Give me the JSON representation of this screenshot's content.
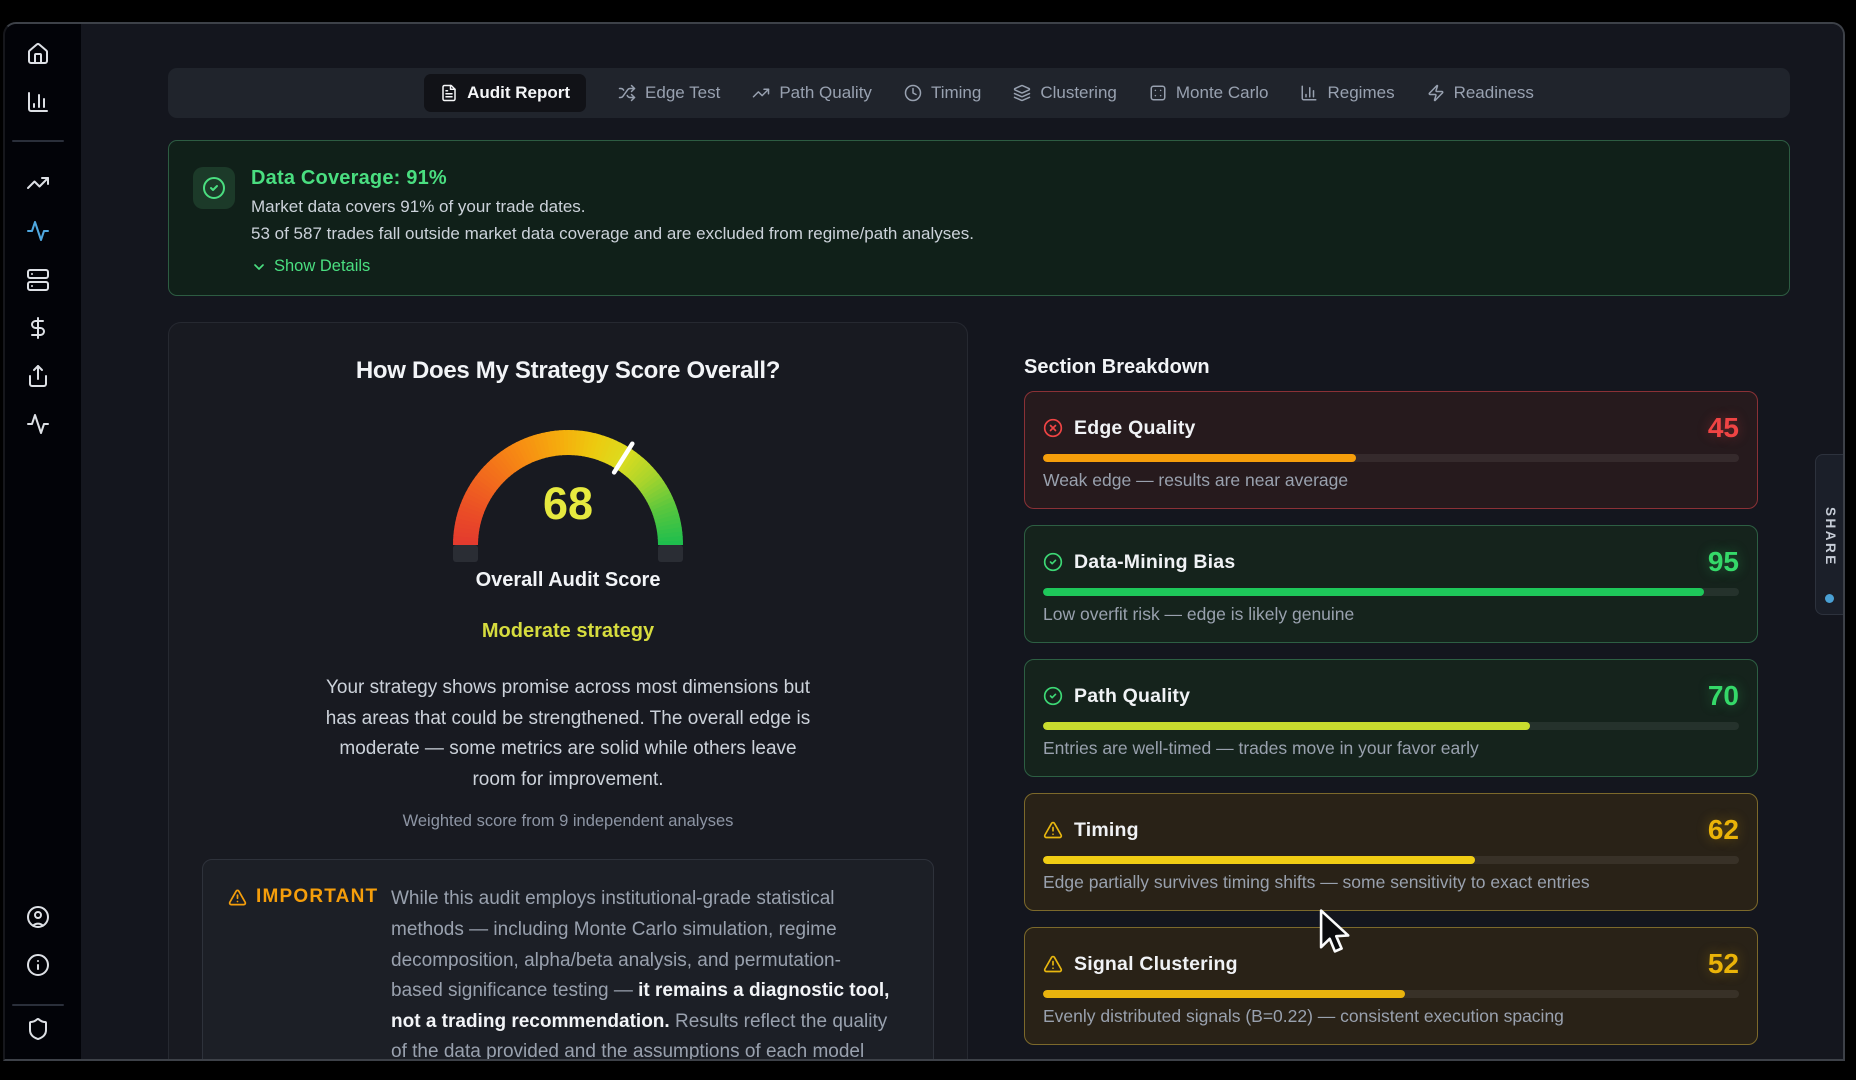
{
  "tabs": {
    "items": [
      {
        "label": "Audit Report",
        "icon": "file-text",
        "active": true
      },
      {
        "label": "Edge Test",
        "icon": "shuffle",
        "active": false
      },
      {
        "label": "Path Quality",
        "icon": "trending-up",
        "active": false
      },
      {
        "label": "Timing",
        "icon": "clock",
        "active": false
      },
      {
        "label": "Clustering",
        "icon": "layers",
        "active": false
      },
      {
        "label": "Monte Carlo",
        "icon": "dice",
        "active": false
      },
      {
        "label": "Regimes",
        "icon": "chart-column",
        "active": false
      },
      {
        "label": "Readiness",
        "icon": "zap",
        "active": false
      }
    ]
  },
  "sidebar": {
    "top_items": [
      {
        "icon": "home"
      },
      {
        "icon": "chart-column"
      },
      {
        "divider": true
      },
      {
        "icon": "trending-up"
      },
      {
        "icon": "activity",
        "color": "#4fa8e0"
      },
      {
        "icon": "server"
      },
      {
        "icon": "dollar-sign"
      },
      {
        "icon": "share"
      },
      {
        "icon": "activity"
      }
    ],
    "bottom_items": [
      {
        "icon": "circle-user"
      },
      {
        "icon": "info"
      },
      {
        "divider": true
      },
      {
        "icon": "shield"
      }
    ]
  },
  "coverage_alert": {
    "icon": "circle-check",
    "title": "Data Coverage: 91%",
    "line1": "Market data covers 91% of your trade dates.",
    "line2": "53 of 587 trades fall outside market data coverage and are excluded from regime/path analyses.",
    "toggle_label": "Show Details",
    "toggle_icon": "chevron-down",
    "accent_color": "#4ade80"
  },
  "overall": {
    "title": "How Does My Strategy Score Overall?",
    "score": "68",
    "score_color": "#e6e93f",
    "score_label": "Overall Audit Score",
    "verdict": "Moderate strategy",
    "verdict_color": "#d6dc3e",
    "summary": "Your strategy shows promise across most dimensions but has areas that could be strengthened. The overall edge is moderate — some metrics are solid while others leave room for improvement.",
    "footnote": "Weighted score from 9 independent analyses"
  },
  "important_note": {
    "label": "IMPORTANT",
    "icon": "triangle-alert",
    "accent_color": "#f59e0b",
    "segments": [
      {
        "text": "While this audit employs institutional-grade statistical\nmethods — including Monte Carlo simulation, regime\ndecomposition, alpha/beta analysis, and permutation-\nbased significance testing — ",
        "bold": false
      },
      {
        "text": "it remains a diagnostic tool,\nnot a trading recommendation.",
        "bold": true
      },
      {
        "text": " Results reflect the quality\nof the data provided and the assumptions of each model",
        "bold": false
      }
    ]
  },
  "sections": {
    "header": "Section Breakdown",
    "cards": [
      {
        "title": "Edge Quality",
        "score": 45,
        "description": "Weak edge — results are near average",
        "status": "fail",
        "icon": "circle-x",
        "tone": "red",
        "icon_color": "#ef4444",
        "score_color": "#ef4444",
        "bar_color": "#f59e0b"
      },
      {
        "title": "Data-Mining Bias",
        "score": 95,
        "description": "Low overfit risk — edge is likely genuine",
        "status": "pass",
        "icon": "circle-check",
        "tone": "green",
        "icon_color": "#3dd875",
        "score_color": "#35d969",
        "bar_color": "#1ec75a"
      },
      {
        "title": "Path Quality",
        "score": 70,
        "description": "Entries are well-timed — trades move in your favor early",
        "status": "pass",
        "icon": "circle-check",
        "tone": "green",
        "icon_color": "#3dd875",
        "score_color": "#35d969",
        "bar_color": "#c9dc2e"
      },
      {
        "title": "Timing",
        "score": 62,
        "description": "Edge partially survives timing shifts — some sensitivity to exact entries",
        "status": "warn",
        "icon": "triangle-alert",
        "tone": "amber",
        "icon_color": "#e8b70f",
        "score_color": "#eab308",
        "bar_color": "#f0cd14"
      },
      {
        "title": "Signal Clustering",
        "score": 52,
        "description": "Evenly distributed signals (B=0.22) — consistent execution spacing",
        "status": "warn",
        "icon": "triangle-alert",
        "tone": "amber",
        "icon_color": "#e8b70f",
        "score_color": "#eab308",
        "bar_color": "#e9b30d"
      }
    ]
  },
  "share_tab": {
    "label": "SHARE",
    "dot_color": "#4aa0d4"
  },
  "chart_data": {
    "type": "gauge",
    "title": "Overall Audit Score",
    "value": 68,
    "range": [
      0,
      100
    ],
    "verdict": "Moderate strategy",
    "color_scale": [
      "#e23a2e",
      "#f78c13",
      "#f5ae0d",
      "#e4e32a",
      "#1cbd4e"
    ],
    "section_scores": {
      "categories": [
        "Edge Quality",
        "Data-Mining Bias",
        "Path Quality",
        "Timing",
        "Signal Clustering"
      ],
      "values": [
        45,
        95,
        70,
        62,
        52
      ],
      "ylim": [
        0,
        100
      ]
    }
  }
}
